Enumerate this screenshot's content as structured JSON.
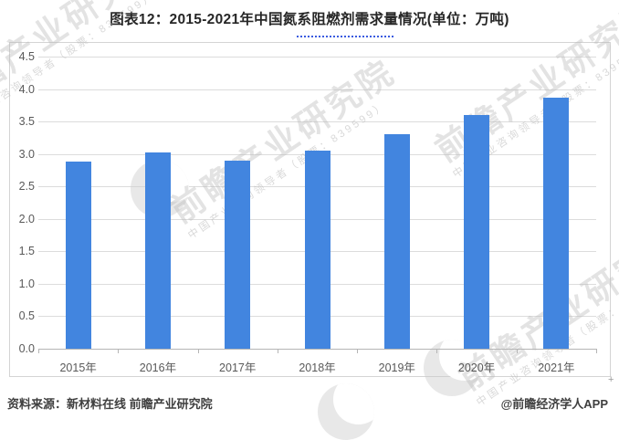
{
  "title": "图表12：2015-2021年中国氮系阻燃剂需求量情况(单位：万吨)",
  "chart_data": {
    "type": "bar",
    "title": "图表12：2015-2021年中国氮系阻燃剂需求量情况(单位：万吨)",
    "unit": "万吨",
    "categories": [
      "2015年",
      "2016年",
      "2017年",
      "2018年",
      "2019年",
      "2020年",
      "2021年"
    ],
    "values": [
      2.88,
      3.03,
      2.9,
      3.05,
      3.3,
      3.6,
      3.87
    ],
    "xlabel": "",
    "ylabel": "",
    "ylim": [
      0,
      4.5
    ],
    "ytick_step": 0.5,
    "ytick_labels": [
      "0.0",
      "0.5",
      "1.0",
      "1.5",
      "2.0",
      "2.5",
      "3.0",
      "3.5",
      "4.0",
      "4.5"
    ],
    "grid": true,
    "legend": false,
    "bar_color": "#4285DF"
  },
  "watermark": {
    "brand": "前瞻产业研究院",
    "sub": "中国产业咨询领导者（股票：839599）"
  },
  "footer": {
    "source": "资料来源：新材料在线 前瞻产业研究院",
    "credit": "@前瞻经济学人APP"
  },
  "misc": {
    "plus": "+"
  },
  "colors": {
    "bar": "#4285DF",
    "gridline": "#DCDCDC",
    "axis_line": "#B5B5B5",
    "title_text": "#262626",
    "tick_text": "#595959",
    "footer_text": "#3F3F3F",
    "dots_underline": "#3A5BE0",
    "watermark": "#BABABA"
  }
}
